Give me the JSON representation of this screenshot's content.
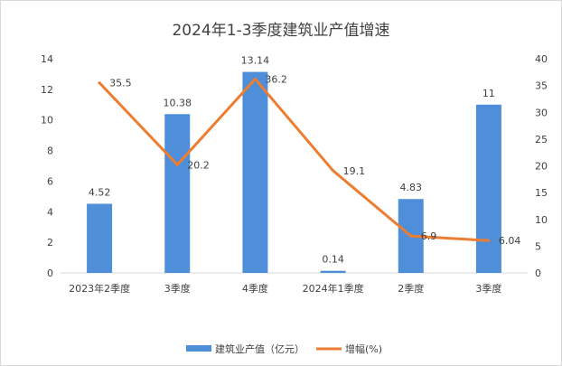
{
  "chart_data": {
    "type": "bar",
    "title": "2024年1-3季度建筑业产值增速",
    "categories": [
      "2023年2季度",
      "3季度",
      "4季度",
      "2024年1季度",
      "2季度",
      "3季度"
    ],
    "series": [
      {
        "name": "建筑业产值（亿元）",
        "type": "bar",
        "axis": "left",
        "color": "#4f8fd9",
        "values": [
          4.52,
          10.38,
          13.14,
          0.14,
          4.83,
          11
        ]
      },
      {
        "name": "增幅(%)",
        "type": "line",
        "axis": "right",
        "color": "#ed7d31",
        "values": [
          35.5,
          20.2,
          36.2,
          19.1,
          6.9,
          6.04
        ]
      }
    ],
    "y_left": {
      "min": 0,
      "max": 14,
      "step": 2,
      "ticks": [
        "0",
        "2",
        "4",
        "6",
        "8",
        "10",
        "12",
        "14"
      ]
    },
    "y_right": {
      "min": 0,
      "max": 40,
      "step": 5,
      "ticks": [
        "0",
        "5",
        "10",
        "15",
        "20",
        "25",
        "30",
        "35",
        "40"
      ]
    },
    "bar_labels": [
      "4.52",
      "10.38",
      "13.14",
      "0.14",
      "4.83",
      "11"
    ],
    "line_labels": [
      "35.5",
      "20.2",
      "36.2",
      "19.1",
      "6.9",
      "6.04"
    ],
    "grid": false,
    "legend_position": "bottom"
  }
}
